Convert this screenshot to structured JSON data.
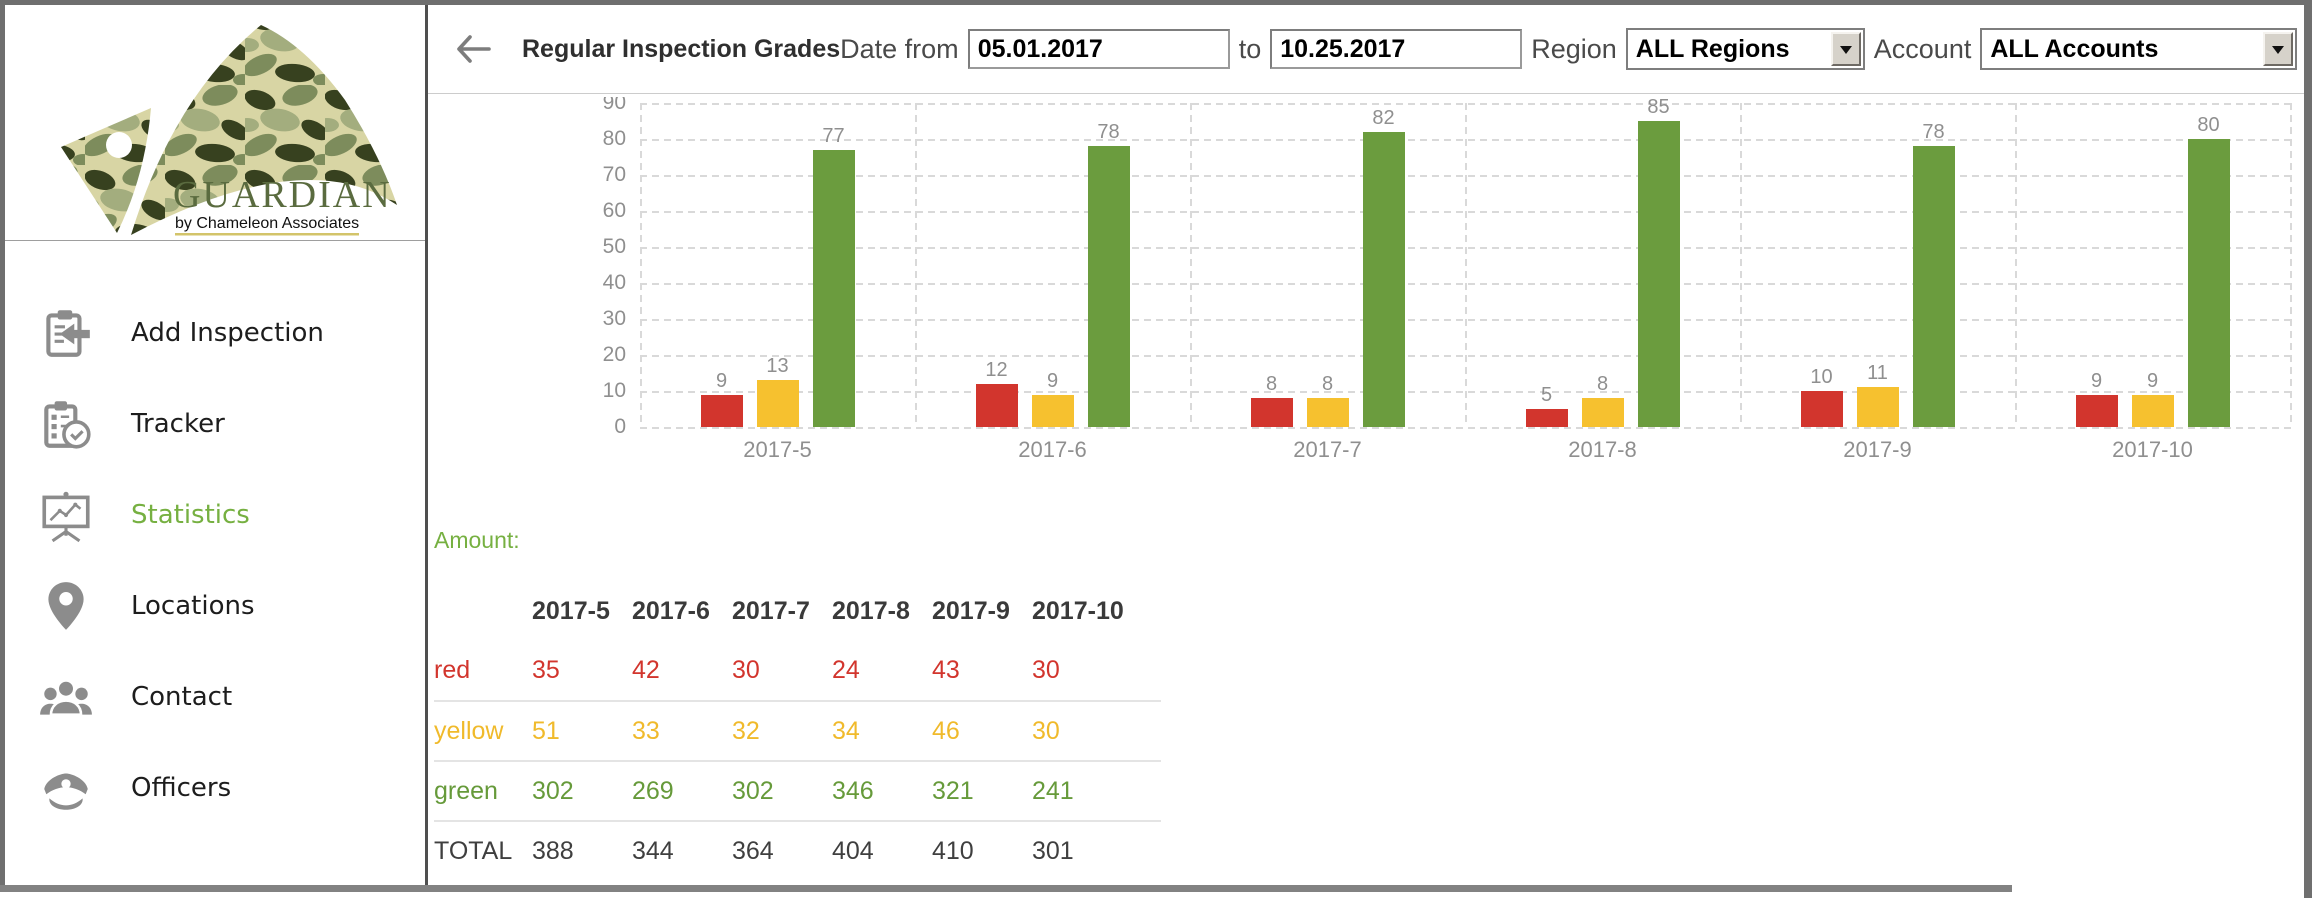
{
  "brand": {
    "name": "GUARDIAN",
    "tagline": "by Chameleon Associates"
  },
  "sidebar": {
    "items": [
      {
        "id": "add-inspection",
        "label": "Add Inspection",
        "icon": "clipboard-arrow-icon",
        "active": false
      },
      {
        "id": "tracker",
        "label": "Tracker",
        "icon": "clipboard-clock-icon",
        "active": false
      },
      {
        "id": "statistics",
        "label": "Statistics",
        "icon": "presentation-chart-icon",
        "active": true
      },
      {
        "id": "locations",
        "label": "Locations",
        "icon": "map-pin-icon",
        "active": false
      },
      {
        "id": "contact",
        "label": "Contact",
        "icon": "people-group-icon",
        "active": false
      },
      {
        "id": "officers",
        "label": "Officers",
        "icon": "officer-cap-icon",
        "active": false
      }
    ]
  },
  "header": {
    "title": "Regular Inspection Grades",
    "date_from_label": "Date from",
    "to_label": "to",
    "region_label": "Region",
    "account_label": "Account",
    "date_from": "05.01.2017",
    "date_to": "10.25.2017",
    "region_value": "ALL Regions",
    "account_value": "ALL Accounts"
  },
  "amount_label": "Amount:",
  "chart_data": {
    "type": "bar",
    "title": "Regular Inspection Grades",
    "categories": [
      "2017-5",
      "2017-6",
      "2017-7",
      "2017-8",
      "2017-9",
      "2017-10"
    ],
    "series": [
      {
        "name": "red",
        "color": "#d2352d",
        "values": [
          9,
          12,
          8,
          5,
          10,
          9
        ]
      },
      {
        "name": "yellow",
        "color": "#f6c12f",
        "values": [
          13,
          9,
          8,
          8,
          11,
          9
        ]
      },
      {
        "name": "green",
        "color": "#6b9c3e",
        "values": [
          77,
          78,
          82,
          85,
          78,
          80
        ]
      }
    ],
    "xlabel": "",
    "ylabel": "",
    "ylim": [
      0,
      90
    ],
    "ytick_step": 10,
    "grid": true,
    "value_labels": true,
    "legend_position": "none"
  },
  "table": {
    "columns": [
      "2017-5",
      "2017-6",
      "2017-7",
      "2017-8",
      "2017-9",
      "2017-10"
    ],
    "rows": [
      {
        "label": "red",
        "color": "#d2352d",
        "values": [
          35,
          42,
          30,
          24,
          43,
          30
        ]
      },
      {
        "label": "yellow",
        "color": "#f0ba2b",
        "values": [
          51,
          33,
          32,
          34,
          46,
          30
        ]
      },
      {
        "label": "green",
        "color": "#669a3a",
        "values": [
          302,
          269,
          302,
          346,
          321,
          241
        ]
      },
      {
        "label": "TOTAL",
        "color": "#3f3f3f",
        "values": [
          388,
          344,
          364,
          404,
          410,
          301
        ]
      }
    ]
  },
  "colors": {
    "accent_green": "#76b041",
    "grid_gray": "#d9d9d9",
    "axis_text": "#8f8f8f",
    "frame_gray": "#6f6f6f"
  }
}
